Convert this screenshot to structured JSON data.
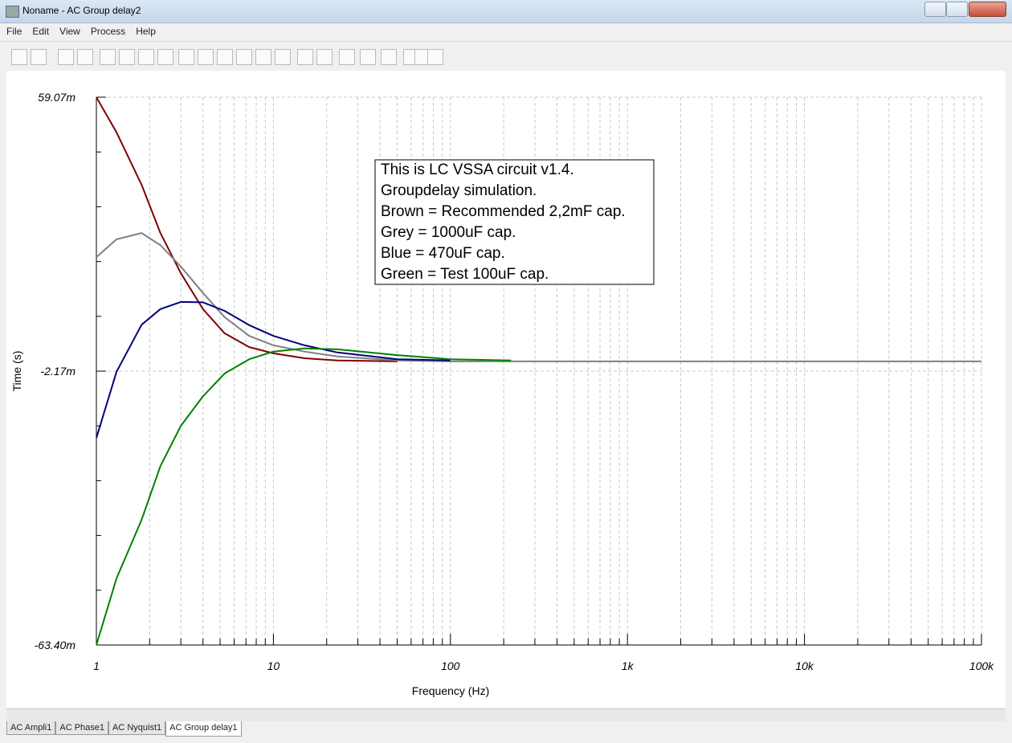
{
  "window": {
    "title": "Noname - AC Group delay2"
  },
  "menu": [
    "File",
    "Edit",
    "View",
    "Process",
    "Help"
  ],
  "tabs": [
    "AC Ampli1",
    "AC Phase1",
    "AC Nyquist1",
    "AC Group delay1"
  ],
  "chart_data": {
    "type": "line",
    "x_label": "Frequency (Hz)",
    "y_label": "Time (s)",
    "x_scale": "log",
    "grid": true,
    "annotation": [
      "This is LC VSSA circuit v1.4.",
      "Groupdelay simulation.",
      "Brown = Recommended 2,2mF cap.",
      "Grey = 1000uF cap.",
      "Blue = 470uF cap.",
      "Green = Test 100uF cap."
    ],
    "x": [
      1,
      1.3,
      1.8,
      2.3,
      3,
      4,
      5.3,
      7.3,
      10,
      15,
      23,
      50,
      100,
      220,
      1000,
      10000,
      100000
    ],
    "xlim": [
      1,
      100000
    ],
    "xticks": [
      1,
      10,
      100,
      {
        "value": 1000,
        "label": "1k"
      },
      {
        "value": 10000,
        "label": "10k"
      },
      {
        "value": 100000,
        "label": "100k"
      }
    ],
    "ylim": [
      -63.4,
      59.07
    ],
    "yticks": [
      {
        "value": -63.4,
        "label": "-63.40m"
      },
      {
        "value": -2.17,
        "label": "-2.17m"
      },
      {
        "value": 59.07,
        "label": "59.07m"
      }
    ],
    "series": [
      {
        "color": "#800000",
        "values": [
          59.07,
          51.2,
          39.5,
          28.7,
          19.7,
          11.7,
          6.3,
          3.2,
          1.8,
          0.7,
          0.2,
          0.0,
          null,
          null,
          null,
          null,
          null
        ]
      },
      {
        "color": "#808080",
        "values": [
          23.3,
          27.3,
          28.7,
          26.0,
          21.2,
          15.3,
          9.9,
          5.7,
          3.6,
          2.2,
          1.1,
          0.2,
          0.0,
          0.0,
          0.0,
          0.0,
          0.0
        ]
      },
      {
        "color": "#000080",
        "values": [
          -17.1,
          -2.3,
          8.2,
          11.7,
          13.3,
          13.2,
          11.3,
          8.1,
          5.7,
          3.6,
          2.0,
          0.5,
          0.2,
          null,
          null,
          null,
          null
        ]
      },
      {
        "color": "#008000",
        "values": [
          -63.4,
          -48.5,
          -35.4,
          -23.4,
          -14.4,
          -7.8,
          -2.7,
          0.5,
          2.2,
          2.9,
          2.7,
          1.4,
          0.5,
          0.2,
          null,
          null,
          null
        ]
      }
    ]
  }
}
